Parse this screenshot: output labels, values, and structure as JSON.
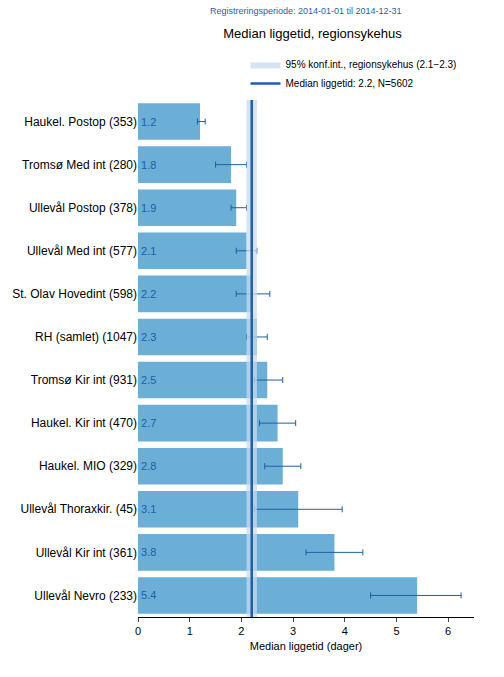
{
  "chart_data": {
    "type": "bar",
    "orientation": "horizontal",
    "title": "Median liggetid, regionsykehus",
    "subtitle": "Registreringsperiode: 2014-01-01 til 2014-12-31",
    "x_label": "Median liggetid (dager)",
    "categories": [
      "Haukel. Postop (353)",
      "Tromsø Med int (280)",
      "Ullevål Postop (378)",
      "Ullevål Med int (577)",
      "St. Olav Hovedint (598)",
      "RH (samlet) (1047)",
      "Tromsø Kir int (931)",
      "Haukel. Kir int (470)",
      "Haukel. MIO (329)",
      "Ullevål Thoraxkir. (45)",
      "Ullevål Kir int (361)",
      "Ullevål Nevro (233)"
    ],
    "values": [
      1.2,
      1.8,
      1.9,
      2.1,
      2.2,
      2.3,
      2.5,
      2.7,
      2.8,
      3.1,
      3.8,
      5.4
    ],
    "error_low": [
      1.15,
      1.5,
      1.8,
      1.9,
      1.9,
      2.1,
      2.25,
      2.35,
      2.45,
      2.25,
      3.25,
      4.5
    ],
    "error_high": [
      1.3,
      2.1,
      2.1,
      2.3,
      2.55,
      2.5,
      2.8,
      3.05,
      3.15,
      3.95,
      4.35,
      6.25
    ],
    "color": "#6baed6",
    "data_labels": true,
    "xlim": [
      0,
      6.5
    ],
    "xticks": [
      0,
      1,
      2,
      3,
      4,
      5,
      6
    ],
    "grid": false,
    "median_line": {
      "value": 2.2,
      "label": "Median liggetid: 2.2, N=5602",
      "color": "#1f5fa8"
    },
    "confidence_band": {
      "low": 2.1,
      "high": 2.3,
      "label": "95% konf.int., regionsykehus (2.1−2.3)",
      "color": "#c6dbef"
    }
  }
}
